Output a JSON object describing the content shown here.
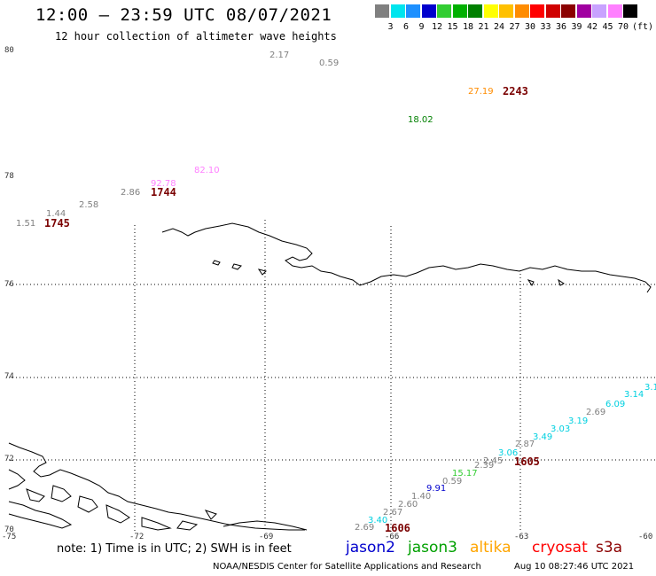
{
  "header": {
    "title": "12:00 – 23:59 UTC 08/07/2021",
    "subtitle": "12 hour collection of altimeter wave heights"
  },
  "colorbar": {
    "unit": "(ft)",
    "labels": [
      "3",
      "6",
      "9",
      "12",
      "15",
      "18",
      "21",
      "24",
      "27",
      "30",
      "33",
      "36",
      "39",
      "42",
      "45",
      "70"
    ],
    "colors": [
      "#808080",
      "#00e5ee",
      "#1e90ff",
      "#0000cd",
      "#32cd32",
      "#00b000",
      "#008000",
      "#ffff00",
      "#ffc000",
      "#ff8c00",
      "#ff0000",
      "#d00000",
      "#8b0000",
      "#a000a0",
      "#c8a2ff",
      "#ff80ff",
      "#000000"
    ]
  },
  "axes": {
    "lat_labels": [
      "80",
      "78",
      "76",
      "74",
      "72",
      "70"
    ],
    "lon_labels": [
      "-75",
      "-72",
      "-69",
      "-66",
      "-63",
      "-60"
    ]
  },
  "observations": [
    {
      "text": "2.17",
      "color": "#808080"
    },
    {
      "text": "0.59",
      "color": "#808080"
    },
    {
      "text": "27.19",
      "color": "#ff8c00"
    },
    {
      "text": "18.02",
      "color": "#008000"
    },
    {
      "text": "82.10",
      "color": "#ff80ff"
    },
    {
      "text": "92.78",
      "color": "#ff80ff"
    },
    {
      "text": "2.86",
      "color": "#808080"
    },
    {
      "text": "2.58",
      "color": "#808080"
    },
    {
      "text": "1.44",
      "color": "#808080"
    },
    {
      "text": "1.51",
      "color": "#808080"
    },
    {
      "text": "3.1",
      "color": "#00d0e0"
    },
    {
      "text": "3.14",
      "color": "#00d0e0"
    },
    {
      "text": "6.09",
      "color": "#00d0e0"
    },
    {
      "text": "2.69",
      "color": "#808080"
    },
    {
      "text": "3.19",
      "color": "#00d0e0"
    },
    {
      "text": "3.03",
      "color": "#00d0e0"
    },
    {
      "text": "3.49",
      "color": "#00d0e0"
    },
    {
      "text": "2.87",
      "color": "#808080"
    },
    {
      "text": "3.06",
      "color": "#00d0e0"
    },
    {
      "text": "2.45",
      "color": "#808080"
    },
    {
      "text": "2.39",
      "color": "#808080"
    },
    {
      "text": "15.17",
      "color": "#32cd32"
    },
    {
      "text": "0.59",
      "color": "#808080"
    },
    {
      "text": "9.91",
      "color": "#0000cd"
    },
    {
      "text": "1.40",
      "color": "#808080"
    },
    {
      "text": "2.60",
      "color": "#808080"
    },
    {
      "text": "2.67",
      "color": "#808080"
    },
    {
      "text": "3.40",
      "color": "#00d0e0"
    },
    {
      "text": "2.69",
      "color": "#808080"
    }
  ],
  "time_tags": [
    "2243",
    "1744",
    "1745",
    "1605",
    "1606"
  ],
  "legend": {
    "note": "note:  1) Time is in UTC;  2) SWH is in feet",
    "satellites": [
      {
        "name": "jason2",
        "color": "#0000cd"
      },
      {
        "name": "jason3",
        "color": "#00a000"
      },
      {
        "name": "altika",
        "color": "#ffa500"
      },
      {
        "name": "cryosat",
        "color": "#ff0000"
      },
      {
        "name": "s3a",
        "color": "#8b0000"
      }
    ]
  },
  "footer": {
    "credit": "NOAA/NESDIS Center for Satellite Applications and Research",
    "timestamp": "Aug 10 08:27:46 UTC 2021"
  }
}
